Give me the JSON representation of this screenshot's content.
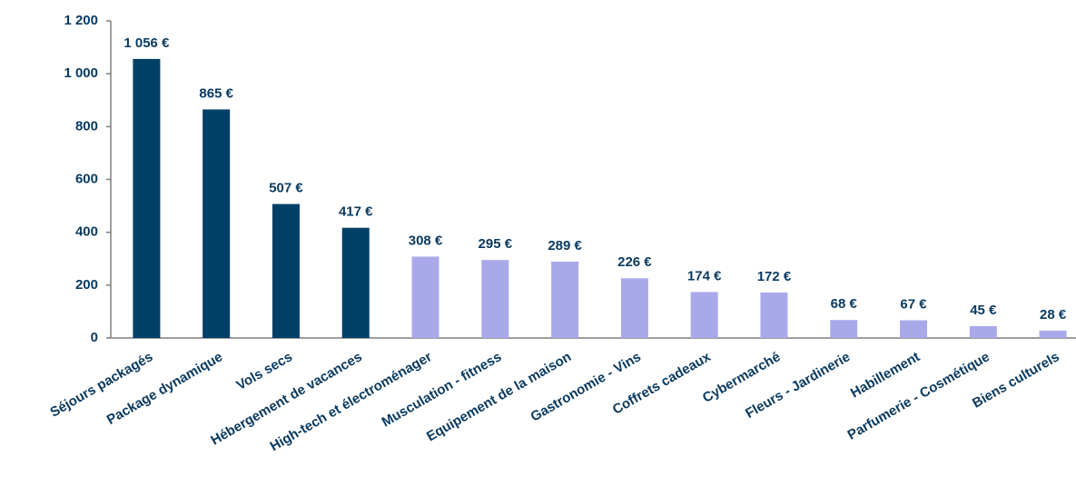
{
  "chart_data": {
    "type": "bar",
    "categories": [
      "Séjours packagés",
      "Package dynamique",
      "Vols secs",
      "Hébergement de vacances",
      "High-tech et électroménager",
      "Musculation - fitness",
      "Equipement de la maison",
      "Gastronomie - Vins",
      "Coffrets cadeaux",
      "Cybermarché",
      "Fleurs - Jardinerie",
      "Habillement",
      "Parfumerie - Cosmétique",
      "Biens culturels"
    ],
    "values": [
      1056,
      865,
      507,
      417,
      308,
      295,
      289,
      226,
      174,
      172,
      68,
      67,
      45,
      28
    ],
    "value_labels": [
      "1 056 €",
      "865 €",
      "507 €",
      "417 €",
      "308 €",
      "295 €",
      "289 €",
      "226 €",
      "174 €",
      "172 €",
      "68 €",
      "67 €",
      "45 €",
      "28 €"
    ],
    "colors": [
      "#003f66",
      "#003f66",
      "#003f66",
      "#003f66",
      "#a9a9ea",
      "#a9a9ea",
      "#a9a9ea",
      "#a9a9ea",
      "#a9a9ea",
      "#a9a9ea",
      "#a9a9ea",
      "#a9a9ea",
      "#a9a9ea",
      "#a9a9ea"
    ],
    "ylim": [
      0,
      1200
    ],
    "yticks": [
      0,
      200,
      400,
      600,
      800,
      {
        "value": 1000,
        "label": "1 000"
      },
      {
        "value": 1200,
        "label": "1 200"
      }
    ],
    "grid": false
  }
}
